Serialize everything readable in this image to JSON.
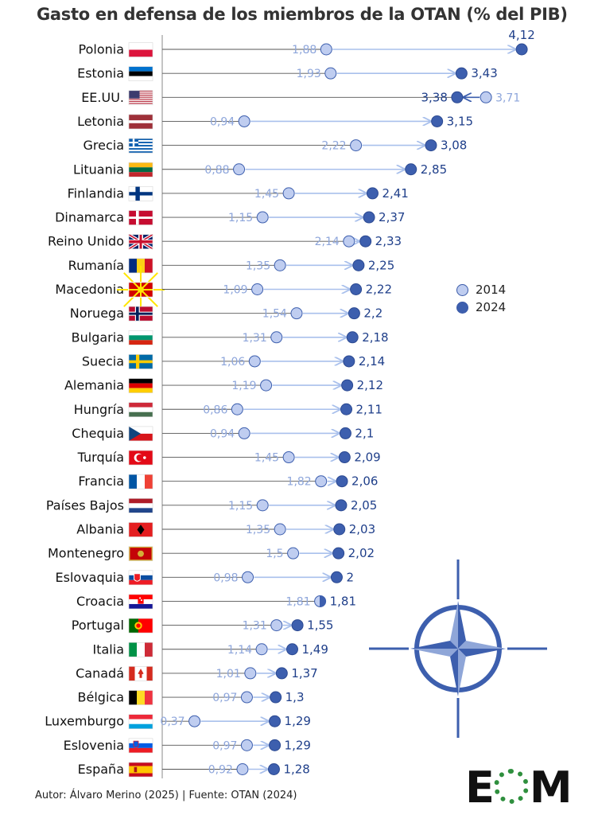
{
  "title": "Gasto en defensa de los miembros de la OTAN (% del PIB)",
  "footer": "Autor: Álvaro Merino (2025) | Fuente: OTAN (2024)",
  "logo_text": "EOM",
  "colors": {
    "y2014": "#bfcdf0",
    "y2024": "#3d5fae",
    "line": "#555555",
    "arrow": "#a9c0ec"
  },
  "chart_data": {
    "type": "dumbbell",
    "series": [
      {
        "name": "2014"
      },
      {
        "name": "2024"
      }
    ],
    "rows": [
      {
        "country": "Polonia",
        "flag": "pl",
        "v2014": "1,88",
        "v2024": "4,12",
        "x2014": 1.88,
        "x2024": 4.12
      },
      {
        "country": "Estonia",
        "flag": "ee",
        "v2014": "1,93",
        "v2024": "3,43",
        "x2014": 1.93,
        "x2024": 3.43
      },
      {
        "country": "EE.UU.",
        "flag": "us",
        "v2014": "3,71",
        "v2024": "3,38",
        "x2014": 3.71,
        "x2024": 3.38
      },
      {
        "country": "Letonia",
        "flag": "lv",
        "v2014": "0,94",
        "v2024": "3,15",
        "x2014": 0.94,
        "x2024": 3.15
      },
      {
        "country": "Grecia",
        "flag": "gr",
        "v2014": "2,22",
        "v2024": "3,08",
        "x2014": 2.22,
        "x2024": 3.08
      },
      {
        "country": "Lituania",
        "flag": "lt",
        "v2014": "0,88",
        "v2024": "2,85",
        "x2014": 0.88,
        "x2024": 2.85
      },
      {
        "country": "Finlandia",
        "flag": "fi",
        "v2014": "1,45",
        "v2024": "2,41",
        "x2014": 1.45,
        "x2024": 2.41
      },
      {
        "country": "Dinamarca",
        "flag": "dk",
        "v2014": "1,15",
        "v2024": "2,37",
        "x2014": 1.15,
        "x2024": 2.37
      },
      {
        "country": "Reino Unido",
        "flag": "gb",
        "v2014": "2,14",
        "v2024": "2,33",
        "x2014": 2.14,
        "x2024": 2.33
      },
      {
        "country": "Rumanía",
        "flag": "ro",
        "v2014": "1,35",
        "v2024": "2,25",
        "x2014": 1.35,
        "x2024": 2.25
      },
      {
        "country": "Macedonia",
        "flag": "mk",
        "v2014": "1,09",
        "v2024": "2,22",
        "x2014": 1.09,
        "x2024": 2.22
      },
      {
        "country": "Noruega",
        "flag": "no",
        "v2014": "1,54",
        "v2024": "2,2",
        "x2014": 1.54,
        "x2024": 2.2
      },
      {
        "country": "Bulgaria",
        "flag": "bg",
        "v2014": "1,31",
        "v2024": "2,18",
        "x2014": 1.31,
        "x2024": 2.18
      },
      {
        "country": "Suecia",
        "flag": "se",
        "v2014": "1,06",
        "v2024": "2,14",
        "x2014": 1.06,
        "x2024": 2.14
      },
      {
        "country": "Alemania",
        "flag": "de",
        "v2014": "1,19",
        "v2024": "2,12",
        "x2014": 1.19,
        "x2024": 2.12
      },
      {
        "country": "Hungría",
        "flag": "hu",
        "v2014": "0,86",
        "v2024": "2,11",
        "x2014": 0.86,
        "x2024": 2.11
      },
      {
        "country": "Chequia",
        "flag": "cz",
        "v2014": "0,94",
        "v2024": "2,1",
        "x2014": 0.94,
        "x2024": 2.1
      },
      {
        "country": "Turquía",
        "flag": "tr",
        "v2014": "1,45",
        "v2024": "2,09",
        "x2014": 1.45,
        "x2024": 2.09
      },
      {
        "country": "Francia",
        "flag": "fr",
        "v2014": "1,82",
        "v2024": "2,06",
        "x2014": 1.82,
        "x2024": 2.06
      },
      {
        "country": "Países Bajos",
        "flag": "nl",
        "v2014": "1,15",
        "v2024": "2,05",
        "x2014": 1.15,
        "x2024": 2.05
      },
      {
        "country": "Albania",
        "flag": "al",
        "v2014": "1,35",
        "v2024": "2,03",
        "x2014": 1.35,
        "x2024": 2.03
      },
      {
        "country": "Montenegro",
        "flag": "me",
        "v2014": "1,5",
        "v2024": "2,02",
        "x2014": 1.5,
        "x2024": 2.02
      },
      {
        "country": "Eslovaquia",
        "flag": "sk",
        "v2014": "0,98",
        "v2024": "2",
        "x2014": 0.98,
        "x2024": 2.0
      },
      {
        "country": "Croacia",
        "flag": "hr",
        "v2014": "1,81",
        "v2024": "1,81",
        "x2014": 1.81,
        "x2024": 1.81
      },
      {
        "country": "Portugal",
        "flag": "pt",
        "v2014": "1,31",
        "v2024": "1,55",
        "x2014": 1.31,
        "x2024": 1.55
      },
      {
        "country": "Italia",
        "flag": "it",
        "v2014": "1,14",
        "v2024": "1,49",
        "x2014": 1.14,
        "x2024": 1.49
      },
      {
        "country": "Canadá",
        "flag": "ca",
        "v2014": "1,01",
        "v2024": "1,37",
        "x2014": 1.01,
        "x2024": 1.37
      },
      {
        "country": "Bélgica",
        "flag": "be",
        "v2014": "0,97",
        "v2024": "1,3",
        "x2014": 0.97,
        "x2024": 1.3
      },
      {
        "country": "Luxemburgo",
        "flag": "lu",
        "v2014": "0,37",
        "v2024": "1,29",
        "x2014": 0.37,
        "x2024": 1.29
      },
      {
        "country": "Eslovenia",
        "flag": "si",
        "v2014": "0,97",
        "v2024": "1,29",
        "x2014": 0.97,
        "x2024": 1.29
      },
      {
        "country": "España",
        "flag": "es",
        "v2014": "0,92",
        "v2024": "1,28",
        "x2014": 0.92,
        "x2024": 1.28
      }
    ],
    "xlim": [
      0,
      4.42
    ]
  }
}
